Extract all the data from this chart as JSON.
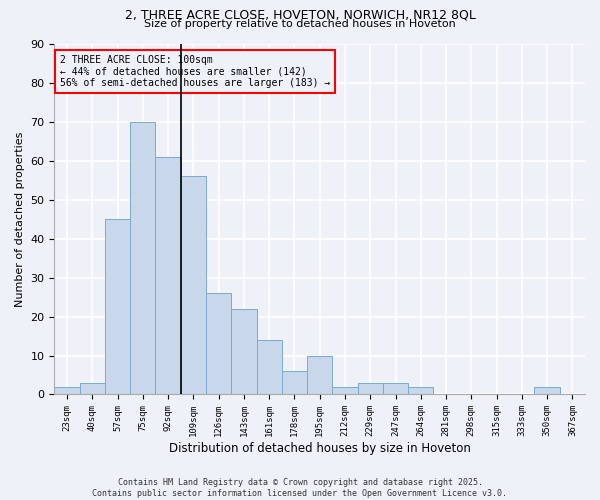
{
  "title1": "2, THREE ACRE CLOSE, HOVETON, NORWICH, NR12 8QL",
  "title2": "Size of property relative to detached houses in Hoveton",
  "xlabel": "Distribution of detached houses by size in Hoveton",
  "ylabel": "Number of detached properties",
  "bar_color": "#c8d8ea",
  "bar_edge_color": "#7aaaca",
  "annotation_title": "2 THREE ACRE CLOSE: 100sqm",
  "annotation_line2": "← 44% of detached houses are smaller (142)",
  "annotation_line3": "56% of semi-detached houses are larger (183) →",
  "annotation_box_color": "red",
  "vline_x": 4.5,
  "categories": [
    "23sqm",
    "40sqm",
    "57sqm",
    "75sqm",
    "92sqm",
    "109sqm",
    "126sqm",
    "143sqm",
    "161sqm",
    "178sqm",
    "195sqm",
    "212sqm",
    "229sqm",
    "247sqm",
    "264sqm",
    "281sqm",
    "298sqm",
    "315sqm",
    "333sqm",
    "350sqm",
    "367sqm"
  ],
  "values": [
    2,
    3,
    45,
    70,
    61,
    56,
    26,
    22,
    14,
    6,
    10,
    2,
    3,
    3,
    2,
    0,
    0,
    0,
    0,
    2,
    0
  ],
  "ylim": [
    0,
    90
  ],
  "yticks": [
    0,
    10,
    20,
    30,
    40,
    50,
    60,
    70,
    80,
    90
  ],
  "background_color": "#eef2f8",
  "grid_color": "#ffffff",
  "footer_line1": "Contains HM Land Registry data © Crown copyright and database right 2025.",
  "footer_line2": "Contains public sector information licensed under the Open Government Licence v3.0."
}
